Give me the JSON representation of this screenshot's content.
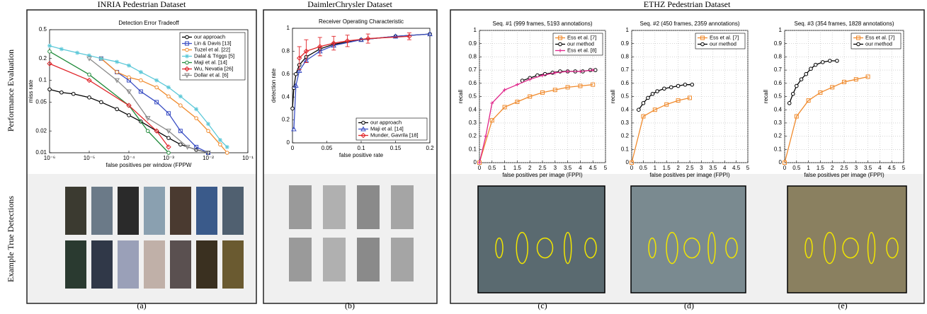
{
  "figure": {
    "panel_titles": [
      "INRIA Pedestrian Dataset",
      "DaimlerChrysler Dataset",
      "ETHZ Pedestrian Dataset"
    ],
    "row_labels": [
      "Performance Evaluation",
      "Example True Detections"
    ],
    "captions": [
      "(a)",
      "(b)",
      "(c)",
      "(d)",
      "(e)"
    ]
  },
  "chart_data": [
    {
      "type": "line",
      "title": "Detection Error Tradeoff",
      "xlabel": "false positives per window (FPPW",
      "ylabel": "miss rate",
      "xscale": "log",
      "yscale": "log",
      "xlim": [
        1e-06,
        0.1
      ],
      "ylim": [
        0.01,
        0.5
      ],
      "xticks": [
        {
          "value": 1e-06,
          "label": "10⁻⁶"
        },
        {
          "value": 1e-05,
          "label": "10⁻⁵"
        },
        {
          "value": 0.0001,
          "label": "10⁻⁴"
        },
        {
          "value": 0.001,
          "label": "10⁻³"
        },
        {
          "value": 0.01,
          "label": "10⁻²"
        },
        {
          "value": 0.1,
          "label": "10⁻¹"
        }
      ],
      "yticks": [
        0.01,
        0.02,
        0.05,
        0.1,
        0.2,
        0.5
      ],
      "grid": false,
      "legend": "upper right",
      "series": [
        {
          "name": "our approach",
          "color": "#000000",
          "marker": "o",
          "x": [
            1e-06,
            2e-06,
            4e-06,
            1e-05,
            2e-05,
            5e-05,
            0.0001,
            0.0002,
            0.0005,
            0.001,
            0.002,
            0.005,
            0.01
          ],
          "values": [
            0.075,
            0.068,
            0.065,
            0.058,
            0.05,
            0.04,
            0.033,
            0.027,
            0.02,
            0.016,
            0.013,
            0.011,
            0.01
          ]
        },
        {
          "name": "Lin & Davis [13]",
          "color": "#3b4fc4",
          "marker": "s",
          "x": [
            2e-05,
            5e-05,
            0.0001,
            0.0002,
            0.0005,
            0.001,
            0.002,
            0.005,
            0.01
          ],
          "values": [
            0.2,
            0.13,
            0.1,
            0.07,
            0.05,
            0.035,
            0.02,
            0.012,
            0.01
          ]
        },
        {
          "name": "Tuzel et al. [22]",
          "color": "#f08a2c",
          "marker": "o",
          "x": [
            2e-05,
            5e-05,
            0.0001,
            0.0002,
            0.0005,
            0.001,
            0.002,
            0.005,
            0.01,
            0.02,
            0.03
          ],
          "values": [
            0.2,
            0.13,
            0.11,
            0.1,
            0.08,
            0.06,
            0.045,
            0.03,
            0.02,
            0.013,
            0.01
          ]
        },
        {
          "name": "Dalal & Triggs [5]",
          "color": "#5cc8d8",
          "marker": "*",
          "x": [
            1e-06,
            2e-06,
            5e-06,
            1e-05,
            2e-05,
            5e-05,
            0.0001,
            0.0002,
            0.0005,
            0.001,
            0.002,
            0.005,
            0.01,
            0.02,
            0.03
          ],
          "values": [
            0.3,
            0.27,
            0.24,
            0.22,
            0.2,
            0.18,
            0.16,
            0.13,
            0.1,
            0.08,
            0.06,
            0.04,
            0.025,
            0.015,
            0.012
          ]
        },
        {
          "name": "Maji et al. [14]",
          "color": "#1f8a3a",
          "marker": "o",
          "x": [
            1e-06,
            1e-05,
            0.0001,
            0.0003,
            0.001
          ],
          "values": [
            0.25,
            0.12,
            0.045,
            0.02,
            0.01
          ]
        },
        {
          "name": "Wu, Nevatia [26]",
          "color": "#e0252a",
          "marker": "d",
          "x": [
            1e-06,
            1e-05,
            0.0001,
            0.0005,
            0.001
          ],
          "values": [
            0.17,
            0.1,
            0.045,
            0.02,
            0.012
          ]
        },
        {
          "name": "Dollar et al. [6]",
          "color": "#8a8a8a",
          "marker": "v",
          "x": [
            1e-05,
            5e-05,
            0.0001,
            0.0003,
            0.001,
            0.003,
            0.01
          ],
          "values": [
            0.2,
            0.1,
            0.07,
            0.03,
            0.02,
            0.012,
            0.01
          ]
        }
      ]
    },
    {
      "type": "line",
      "title": "Receiver Operating Characteristic",
      "xlabel": "false positive rate",
      "ylabel": "detection rate",
      "xlim": [
        0,
        0.2
      ],
      "ylim": [
        0,
        1
      ],
      "xticks": [
        0,
        0.05,
        0.1,
        0.15,
        0.2
      ],
      "yticks": [
        0,
        0.2,
        0.4,
        0.6,
        0.8,
        1
      ],
      "grid": false,
      "legend": "lower right",
      "series": [
        {
          "name": "our approach",
          "color": "#000000",
          "marker": "o",
          "x": [
            0,
            0.002,
            0.005,
            0.01,
            0.02,
            0.04,
            0.06,
            0.1,
            0.15,
            0.2
          ],
          "values": [
            0.3,
            0.48,
            0.6,
            0.68,
            0.75,
            0.82,
            0.86,
            0.9,
            0.93,
            0.95
          ]
        },
        {
          "name": "Maji et al. [14]",
          "color": "#3b4fc4",
          "marker": "^",
          "x": [
            0.002,
            0.005,
            0.01,
            0.02,
            0.04,
            0.06,
            0.1,
            0.15,
            0.2
          ],
          "values": [
            0.12,
            0.5,
            0.63,
            0.72,
            0.8,
            0.85,
            0.9,
            0.93,
            0.95
          ]
        },
        {
          "name": "Munder, Gavrila [18]",
          "color": "#e0252a",
          "marker": "d",
          "x": [
            0.01,
            0.02,
            0.04,
            0.06,
            0.08,
            0.11,
            0.17
          ],
          "values": [
            0.74,
            0.8,
            0.84,
            0.87,
            0.89,
            0.91,
            0.93
          ],
          "errors": [
            0.1,
            0.1,
            0.08,
            0.06,
            0.05,
            0.04,
            0.03
          ]
        }
      ]
    },
    {
      "type": "line",
      "title": "Seq. #1 (999 frames, 5193 annotations)",
      "xlabel": "false positives per image (FPPI)",
      "ylabel": "recall",
      "xlim": [
        0,
        5
      ],
      "ylim": [
        0,
        1
      ],
      "xticks": [
        0,
        0.5,
        1,
        1.5,
        2,
        2.5,
        3,
        3.5,
        4,
        4.5,
        5
      ],
      "yticks": [
        0,
        0.1,
        0.2,
        0.3,
        0.4,
        0.5,
        0.6,
        0.7,
        0.8,
        0.9,
        1
      ],
      "grid": true,
      "legend": "upper right",
      "series": [
        {
          "name": "Ess et al. [7]",
          "color": "#f08a2c",
          "marker": "s",
          "x": [
            0,
            0.5,
            1,
            1.5,
            2,
            2.5,
            3,
            3.5,
            4,
            4.5
          ],
          "values": [
            0,
            0.32,
            0.42,
            0.46,
            0.5,
            0.53,
            0.55,
            0.57,
            0.58,
            0.59
          ]
        },
        {
          "name": "our method",
          "color": "#000000",
          "marker": "o",
          "x": [
            1.7,
            2,
            2.3,
            2.6,
            2.9,
            3.2,
            3.5,
            3.8,
            4.1,
            4.4,
            4.6
          ],
          "values": [
            0.62,
            0.64,
            0.66,
            0.67,
            0.68,
            0.69,
            0.69,
            0.69,
            0.69,
            0.7,
            0.7
          ]
        },
        {
          "name": "Ess et al. [8]",
          "color": "#e0258a",
          "marker": "+",
          "x": [
            0,
            0.25,
            0.5,
            1,
            1.5,
            2,
            2.5,
            3,
            3.5,
            4,
            4.5
          ],
          "values": [
            0,
            0.2,
            0.45,
            0.55,
            0.59,
            0.63,
            0.66,
            0.68,
            0.69,
            0.69,
            0.7
          ]
        }
      ]
    },
    {
      "type": "line",
      "title": "Seq. #2 (450 frames, 2359 annotations)",
      "xlabel": "false positives per image (FPPI)",
      "ylabel": "recall",
      "xlim": [
        0,
        5
      ],
      "ylim": [
        0,
        1
      ],
      "xticks": [
        0,
        0.5,
        1,
        1.5,
        2,
        2.5,
        3,
        3.5,
        4,
        4.5,
        5
      ],
      "yticks": [
        0,
        0.1,
        0.2,
        0.3,
        0.4,
        0.5,
        0.6,
        0.7,
        0.8,
        0.9,
        1
      ],
      "grid": true,
      "legend": "upper right",
      "series": [
        {
          "name": "Ess et al. [7]",
          "color": "#f08a2c",
          "marker": "s",
          "x": [
            0,
            0.5,
            1,
            1.5,
            2,
            2.5
          ],
          "values": [
            0,
            0.35,
            0.4,
            0.44,
            0.47,
            0.49
          ]
        },
        {
          "name": "our method",
          "color": "#000000",
          "marker": "o",
          "x": [
            0.3,
            0.5,
            0.7,
            0.9,
            1.1,
            1.4,
            1.7,
            2,
            2.3,
            2.6
          ],
          "values": [
            0.4,
            0.45,
            0.49,
            0.52,
            0.54,
            0.56,
            0.57,
            0.58,
            0.59,
            0.59
          ]
        }
      ]
    },
    {
      "type": "line",
      "title": "Seq. #3 (354 frames, 1828 annotations)",
      "xlabel": "false positives per image (FPPI)",
      "ylabel": "recall",
      "xlim": [
        0,
        5
      ],
      "ylim": [
        0,
        1
      ],
      "xticks": [
        0,
        0.5,
        1,
        1.5,
        2,
        2.5,
        3,
        3.5,
        4,
        4.5,
        5
      ],
      "yticks": [
        0,
        0.1,
        0.2,
        0.3,
        0.4,
        0.5,
        0.6,
        0.7,
        0.8,
        0.9,
        1
      ],
      "grid": true,
      "legend": "upper right",
      "series": [
        {
          "name": "Ess et al. [7]",
          "color": "#f08a2c",
          "marker": "s",
          "x": [
            0,
            0.5,
            1,
            1.5,
            2,
            2.5,
            3,
            3.5
          ],
          "values": [
            0,
            0.35,
            0.47,
            0.53,
            0.57,
            0.61,
            0.63,
            0.65
          ]
        },
        {
          "name": "our method",
          "color": "#000000",
          "marker": "o",
          "x": [
            0.2,
            0.35,
            0.5,
            0.7,
            0.9,
            1.1,
            1.3,
            1.6,
            1.9,
            2.2
          ],
          "values": [
            0.45,
            0.52,
            0.58,
            0.63,
            0.67,
            0.71,
            0.74,
            0.76,
            0.77,
            0.77
          ]
        }
      ]
    }
  ]
}
